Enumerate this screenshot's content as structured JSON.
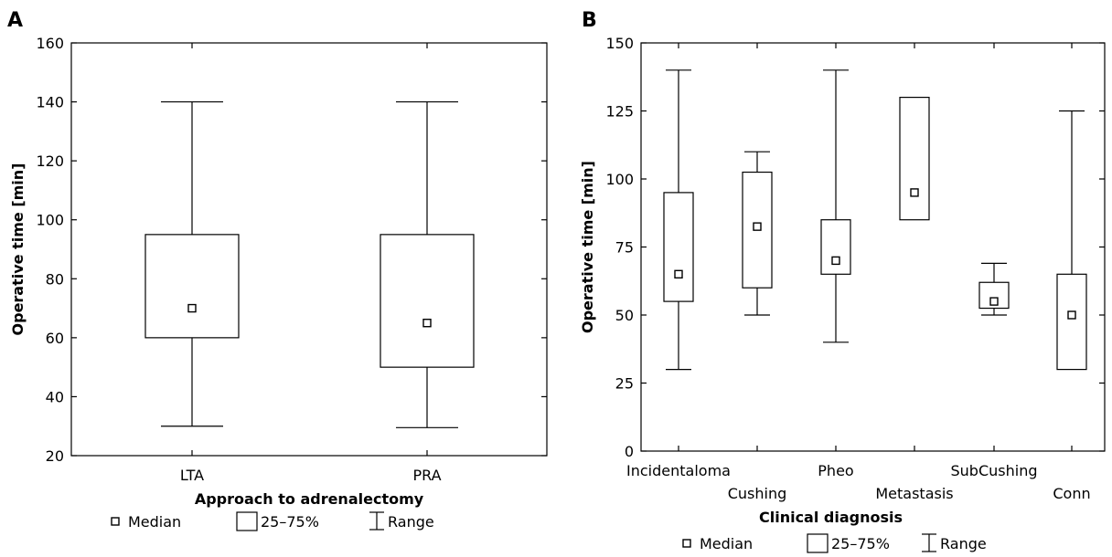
{
  "chart_data": [
    {
      "type": "box",
      "panel_label": "A",
      "xlabel": "Approach to adrenalectomy",
      "ylabel": "Operative time [min]",
      "ylim": [
        20,
        160
      ],
      "yticks": [
        20,
        40,
        60,
        80,
        100,
        120,
        140,
        160
      ],
      "categories": [
        "LTA",
        "PRA"
      ],
      "boxes": [
        {
          "category": "LTA",
          "min": 30,
          "q1": 60,
          "median": 70,
          "q3": 95,
          "max": 140
        },
        {
          "category": "PRA",
          "min": 29.5,
          "q1": 50,
          "median": 65,
          "q3": 95,
          "max": 140
        }
      ],
      "legend": {
        "median": "Median",
        "box": "25–75%",
        "range": "Range"
      },
      "grid": false
    },
    {
      "type": "box",
      "panel_label": "B",
      "xlabel": "Clinical diagnosis",
      "ylabel": "Operative time [min]",
      "ylim": [
        0,
        150
      ],
      "yticks": [
        0,
        25,
        50,
        75,
        100,
        125,
        150
      ],
      "categories": [
        "Incidentaloma",
        "Cushing",
        "Pheo",
        "Metastasis",
        "SubCushing",
        "Conn"
      ],
      "boxes": [
        {
          "category": "Incidentaloma",
          "min": 30,
          "q1": 55,
          "median": 65,
          "q3": 95,
          "max": 140
        },
        {
          "category": "Cushing",
          "min": 50,
          "q1": 60,
          "median": 82.5,
          "q3": 102.5,
          "max": 110
        },
        {
          "category": "Pheo",
          "min": 40,
          "q1": 65,
          "median": 70,
          "q3": 85,
          "max": 140
        },
        {
          "category": "Metastasis",
          "min": 85,
          "q1": 85,
          "median": 95,
          "q3": 130,
          "max": 130
        },
        {
          "category": "SubCushing",
          "min": 50,
          "q1": 52.5,
          "median": 55,
          "q3": 62,
          "max": 69
        },
        {
          "category": "Conn",
          "min": 30,
          "q1": 30,
          "median": 50,
          "q3": 65,
          "max": 125
        }
      ],
      "legend": {
        "median": "Median",
        "box": "25–75%",
        "range": "Range"
      },
      "grid": false
    }
  ]
}
